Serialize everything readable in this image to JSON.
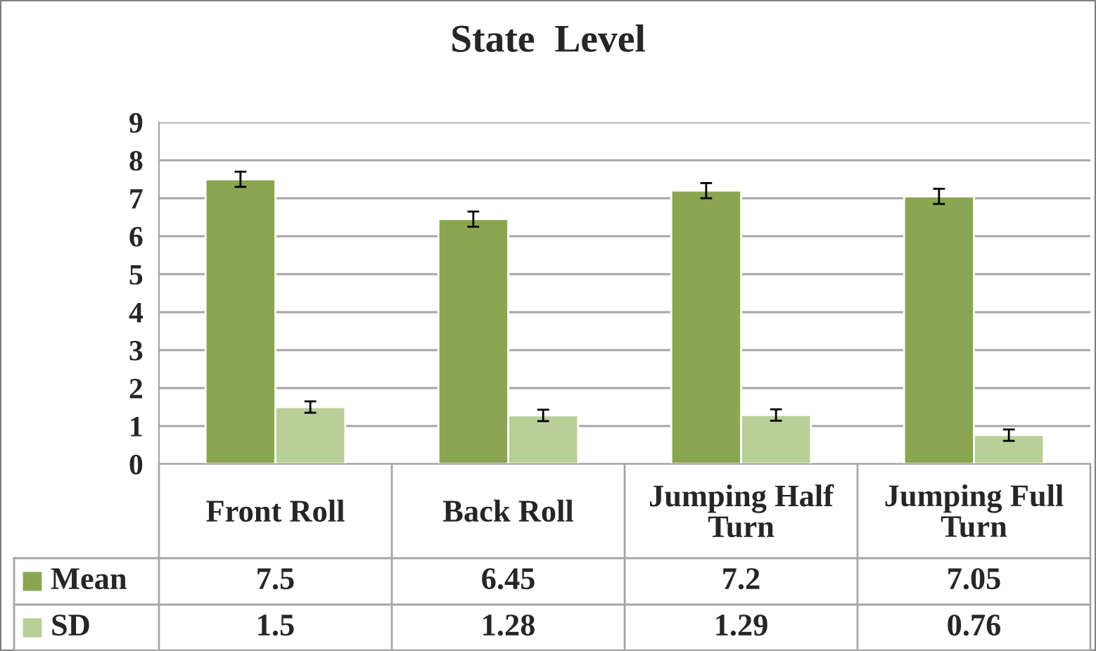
{
  "chart_data": {
    "type": "bar",
    "title": "State  Level",
    "categories": [
      "Front Roll",
      "Back Roll",
      "Jumping Half Turn",
      "Jumping Full Turn"
    ],
    "series": [
      {
        "name": "Mean",
        "color": "#8aa650",
        "values": [
          7.5,
          6.45,
          7.2,
          7.05
        ],
        "errors": [
          0.2,
          0.2,
          0.2,
          0.2
        ]
      },
      {
        "name": "SD",
        "color": "#b9cf98",
        "values": [
          1.5,
          1.28,
          1.29,
          0.76
        ],
        "errors": [
          0.15,
          0.15,
          0.15,
          0.15
        ]
      }
    ],
    "ylim": [
      0,
      9
    ],
    "yticks": [
      0,
      1,
      2,
      3,
      4,
      5,
      6,
      7,
      8,
      9
    ],
    "grid": "y",
    "data_labels": true,
    "legend": "bottom"
  }
}
